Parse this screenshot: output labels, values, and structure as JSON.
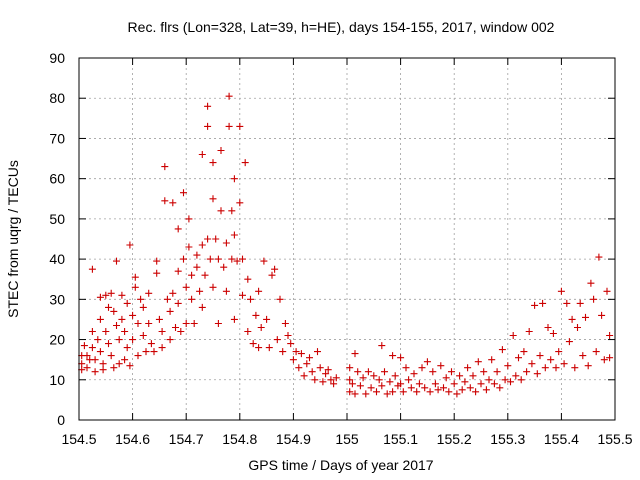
{
  "chart_data": {
    "type": "scatter",
    "title": "Rec. flrs (Lon=328, Lat=39, h=HE), days 154-155, 2017, window 002",
    "xlabel": "GPS time / Days of year 2017",
    "ylabel": "STEC from uqrg / TECUs",
    "xlim": [
      154.5,
      155.5
    ],
    "ylim": [
      0,
      90
    ],
    "xticks": [
      "154.5",
      "154.6",
      "154.7",
      "154.8",
      "154.9",
      "155",
      "155.1",
      "155.2",
      "155.3",
      "155.4",
      "155.5"
    ],
    "yticks": [
      "0",
      "10",
      "20",
      "30",
      "40",
      "50",
      "60",
      "70",
      "80",
      "90"
    ],
    "grid": true,
    "marker": "plus",
    "color": "#cc0000",
    "points": [
      [
        154.505,
        16
      ],
      [
        154.505,
        14
      ],
      [
        154.505,
        12.5
      ],
      [
        154.51,
        18.5
      ],
      [
        154.515,
        16
      ],
      [
        154.515,
        13
      ],
      [
        154.52,
        15
      ],
      [
        154.525,
        37.5
      ],
      [
        154.525,
        22
      ],
      [
        154.525,
        18
      ],
      [
        154.53,
        15
      ],
      [
        154.53,
        12
      ],
      [
        154.535,
        20
      ],
      [
        154.54,
        30.5
      ],
      [
        154.54,
        25
      ],
      [
        154.54,
        17
      ],
      [
        154.545,
        14
      ],
      [
        154.545,
        12.5
      ],
      [
        154.55,
        31
      ],
      [
        154.55,
        22
      ],
      [
        154.555,
        28
      ],
      [
        154.555,
        19
      ],
      [
        154.56,
        31.5
      ],
      [
        154.56,
        16
      ],
      [
        154.565,
        27
      ],
      [
        154.565,
        13
      ],
      [
        154.57,
        39.5
      ],
      [
        154.57,
        23.5
      ],
      [
        154.575,
        20
      ],
      [
        154.575,
        14
      ],
      [
        154.58,
        31
      ],
      [
        154.58,
        25
      ],
      [
        154.585,
        22
      ],
      [
        154.585,
        15
      ],
      [
        154.59,
        29
      ],
      [
        154.59,
        18
      ],
      [
        154.595,
        43.5
      ],
      [
        154.595,
        13.5
      ],
      [
        154.6,
        20
      ],
      [
        154.6,
        26
      ],
      [
        154.605,
        35.5
      ],
      [
        154.605,
        33
      ],
      [
        154.61,
        24
      ],
      [
        154.61,
        16
      ],
      [
        154.615,
        30
      ],
      [
        154.62,
        28
      ],
      [
        154.62,
        21
      ],
      [
        154.625,
        17
      ],
      [
        154.63,
        31.5
      ],
      [
        154.63,
        24
      ],
      [
        154.635,
        19
      ],
      [
        154.64,
        17
      ],
      [
        154.645,
        39.5
      ],
      [
        154.645,
        36.5
      ],
      [
        154.65,
        25
      ],
      [
        154.655,
        22
      ],
      [
        154.655,
        18
      ],
      [
        154.66,
        63
      ],
      [
        154.66,
        54.5
      ],
      [
        154.665,
        30
      ],
      [
        154.67,
        27
      ],
      [
        154.67,
        20
      ],
      [
        154.675,
        54
      ],
      [
        154.675,
        31.5
      ],
      [
        154.68,
        23
      ],
      [
        154.685,
        47.5
      ],
      [
        154.685,
        37
      ],
      [
        154.685,
        29
      ],
      [
        154.69,
        22
      ],
      [
        154.695,
        56.5
      ],
      [
        154.695,
        40
      ],
      [
        154.7,
        33
      ],
      [
        154.7,
        24
      ],
      [
        154.705,
        50
      ],
      [
        154.705,
        43
      ],
      [
        154.71,
        36
      ],
      [
        154.71,
        30
      ],
      [
        154.715,
        24
      ],
      [
        154.72,
        41
      ],
      [
        154.72,
        38
      ],
      [
        154.725,
        32
      ],
      [
        154.73,
        66
      ],
      [
        154.73,
        43.5
      ],
      [
        154.73,
        28
      ],
      [
        154.735,
        36
      ],
      [
        154.74,
        78
      ],
      [
        154.74,
        73
      ],
      [
        154.74,
        45
      ],
      [
        154.745,
        40
      ],
      [
        154.75,
        64
      ],
      [
        154.75,
        55
      ],
      [
        154.75,
        33
      ],
      [
        154.755,
        45
      ],
      [
        154.76,
        40
      ],
      [
        154.76,
        24
      ],
      [
        154.765,
        67
      ],
      [
        154.765,
        52
      ],
      [
        154.77,
        38
      ],
      [
        154.775,
        44
      ],
      [
        154.775,
        32
      ],
      [
        154.78,
        80.5
      ],
      [
        154.78,
        73
      ],
      [
        154.785,
        52
      ],
      [
        154.785,
        40
      ],
      [
        154.79,
        60
      ],
      [
        154.79,
        46
      ],
      [
        154.79,
        25
      ],
      [
        154.795,
        39.5
      ],
      [
        154.8,
        73
      ],
      [
        154.8,
        54
      ],
      [
        154.805,
        40
      ],
      [
        154.805,
        31
      ],
      [
        154.81,
        64
      ],
      [
        154.815,
        35
      ],
      [
        154.815,
        22
      ],
      [
        154.82,
        30
      ],
      [
        154.825,
        19
      ],
      [
        154.83,
        26
      ],
      [
        154.835,
        32
      ],
      [
        154.835,
        18
      ],
      [
        154.84,
        23
      ],
      [
        154.845,
        39.5
      ],
      [
        154.85,
        25
      ],
      [
        154.855,
        18
      ],
      [
        154.86,
        36
      ],
      [
        154.865,
        37.5
      ],
      [
        154.87,
        20
      ],
      [
        154.875,
        30
      ],
      [
        154.88,
        17
      ],
      [
        154.885,
        24
      ],
      [
        154.89,
        21
      ],
      [
        154.895,
        19
      ],
      [
        154.9,
        15
      ],
      [
        154.905,
        17
      ],
      [
        154.91,
        13
      ],
      [
        154.915,
        16.5
      ],
      [
        154.92,
        11
      ],
      [
        154.925,
        14
      ],
      [
        154.93,
        15.5
      ],
      [
        154.935,
        12
      ],
      [
        154.94,
        10
      ],
      [
        154.945,
        17
      ],
      [
        154.95,
        13
      ],
      [
        154.955,
        9.5
      ],
      [
        154.96,
        11.5
      ],
      [
        154.965,
        12.5
      ],
      [
        154.97,
        10
      ],
      [
        154.975,
        9
      ],
      [
        154.98,
        10.5
      ],
      [
        155.005,
        13
      ],
      [
        155.005,
        10
      ],
      [
        155.005,
        7
      ],
      [
        155.01,
        9
      ],
      [
        155.015,
        16.5
      ],
      [
        155.015,
        6.5
      ],
      [
        155.02,
        12
      ],
      [
        155.025,
        8.5
      ],
      [
        155.03,
        10.5
      ],
      [
        155.035,
        6.5
      ],
      [
        155.04,
        12
      ],
      [
        155.045,
        8
      ],
      [
        155.05,
        11
      ],
      [
        155.055,
        7
      ],
      [
        155.06,
        10
      ],
      [
        155.065,
        18.5
      ],
      [
        155.065,
        8.5
      ],
      [
        155.07,
        12
      ],
      [
        155.075,
        6.5
      ],
      [
        155.08,
        9.5
      ],
      [
        155.085,
        16
      ],
      [
        155.085,
        7
      ],
      [
        155.09,
        11
      ],
      [
        155.095,
        8.5
      ],
      [
        155.1,
        15.5
      ],
      [
        155.1,
        9
      ],
      [
        155.105,
        7
      ],
      [
        155.11,
        13
      ],
      [
        155.115,
        10
      ],
      [
        155.12,
        8
      ],
      [
        155.125,
        11.5
      ],
      [
        155.13,
        7
      ],
      [
        155.135,
        9
      ],
      [
        155.14,
        13
      ],
      [
        155.145,
        8
      ],
      [
        155.15,
        14.5
      ],
      [
        155.155,
        7
      ],
      [
        155.16,
        12
      ],
      [
        155.165,
        9
      ],
      [
        155.17,
        7.5
      ],
      [
        155.175,
        13.5
      ],
      [
        155.18,
        8
      ],
      [
        155.185,
        10.5
      ],
      [
        155.19,
        7
      ],
      [
        155.195,
        12
      ],
      [
        155.2,
        9
      ],
      [
        155.205,
        6.5
      ],
      [
        155.21,
        11
      ],
      [
        155.215,
        7.5
      ],
      [
        155.22,
        9.5
      ],
      [
        155.225,
        13
      ],
      [
        155.23,
        8
      ],
      [
        155.235,
        11
      ],
      [
        155.24,
        7
      ],
      [
        155.245,
        14.5
      ],
      [
        155.25,
        9
      ],
      [
        155.255,
        12
      ],
      [
        155.26,
        7.5
      ],
      [
        155.265,
        10
      ],
      [
        155.27,
        15
      ],
      [
        155.275,
        9
      ],
      [
        155.28,
        12
      ],
      [
        155.285,
        8
      ],
      [
        155.29,
        17.5
      ],
      [
        155.295,
        10
      ],
      [
        155.3,
        13.5
      ],
      [
        155.305,
        9.5
      ],
      [
        155.31,
        21
      ],
      [
        155.315,
        11
      ],
      [
        155.32,
        15.5
      ],
      [
        155.325,
        10
      ],
      [
        155.33,
        17
      ],
      [
        155.335,
        12
      ],
      [
        155.34,
        22
      ],
      [
        155.345,
        14
      ],
      [
        155.35,
        28.5
      ],
      [
        155.355,
        11.5
      ],
      [
        155.36,
        16
      ],
      [
        155.365,
        29
      ],
      [
        155.37,
        13
      ],
      [
        155.375,
        23
      ],
      [
        155.38,
        15
      ],
      [
        155.385,
        21.5
      ],
      [
        155.39,
        13
      ],
      [
        155.395,
        17
      ],
      [
        155.4,
        32
      ],
      [
        155.405,
        14
      ],
      [
        155.41,
        29
      ],
      [
        155.415,
        19.5
      ],
      [
        155.42,
        25
      ],
      [
        155.425,
        13
      ],
      [
        155.43,
        23
      ],
      [
        155.435,
        29
      ],
      [
        155.44,
        16
      ],
      [
        155.445,
        25.5
      ],
      [
        155.45,
        13.5
      ],
      [
        155.455,
        34
      ],
      [
        155.46,
        30
      ],
      [
        155.465,
        17
      ],
      [
        155.47,
        40.5
      ],
      [
        155.475,
        26
      ],
      [
        155.48,
        15
      ],
      [
        155.485,
        32
      ],
      [
        155.49,
        15.5
      ],
      [
        155.49,
        21
      ]
    ]
  }
}
